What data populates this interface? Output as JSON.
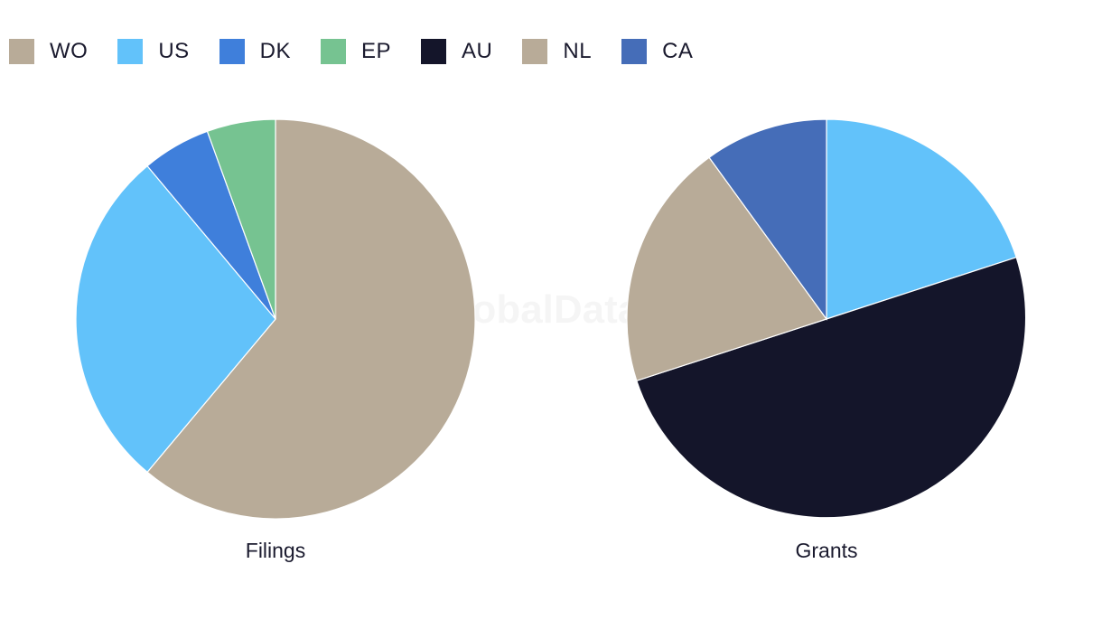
{
  "legend": [
    {
      "label": "WO",
      "color": "#b8ab98"
    },
    {
      "label": "US",
      "color": "#62c2fa"
    },
    {
      "label": "DK",
      "color": "#3f7fdb"
    },
    {
      "label": "EP",
      "color": "#76c391"
    },
    {
      "label": "AU",
      "color": "#14152a"
    },
    {
      "label": "NL",
      "color": "#b8ab98"
    },
    {
      "label": "CA",
      "color": "#456db8"
    }
  ],
  "watermark": "GlobalData",
  "chart_data": [
    {
      "type": "pie",
      "title": "Filings",
      "slices": [
        {
          "label": "WO",
          "value": 61.1,
          "color": "#b8ab98"
        },
        {
          "label": "US",
          "value": 27.8,
          "color": "#62c2fa"
        },
        {
          "label": "DK",
          "value": 5.55,
          "color": "#3f7fdb"
        },
        {
          "label": "EP",
          "value": 5.55,
          "color": "#76c391"
        }
      ]
    },
    {
      "type": "pie",
      "title": "Grants",
      "slices": [
        {
          "label": "US",
          "value": 20,
          "color": "#62c2fa"
        },
        {
          "label": "AU",
          "value": 50,
          "color": "#14152a"
        },
        {
          "label": "NL",
          "value": 20,
          "color": "#b8ab98"
        },
        {
          "label": "CA",
          "value": 10,
          "color": "#456db8"
        }
      ]
    }
  ]
}
